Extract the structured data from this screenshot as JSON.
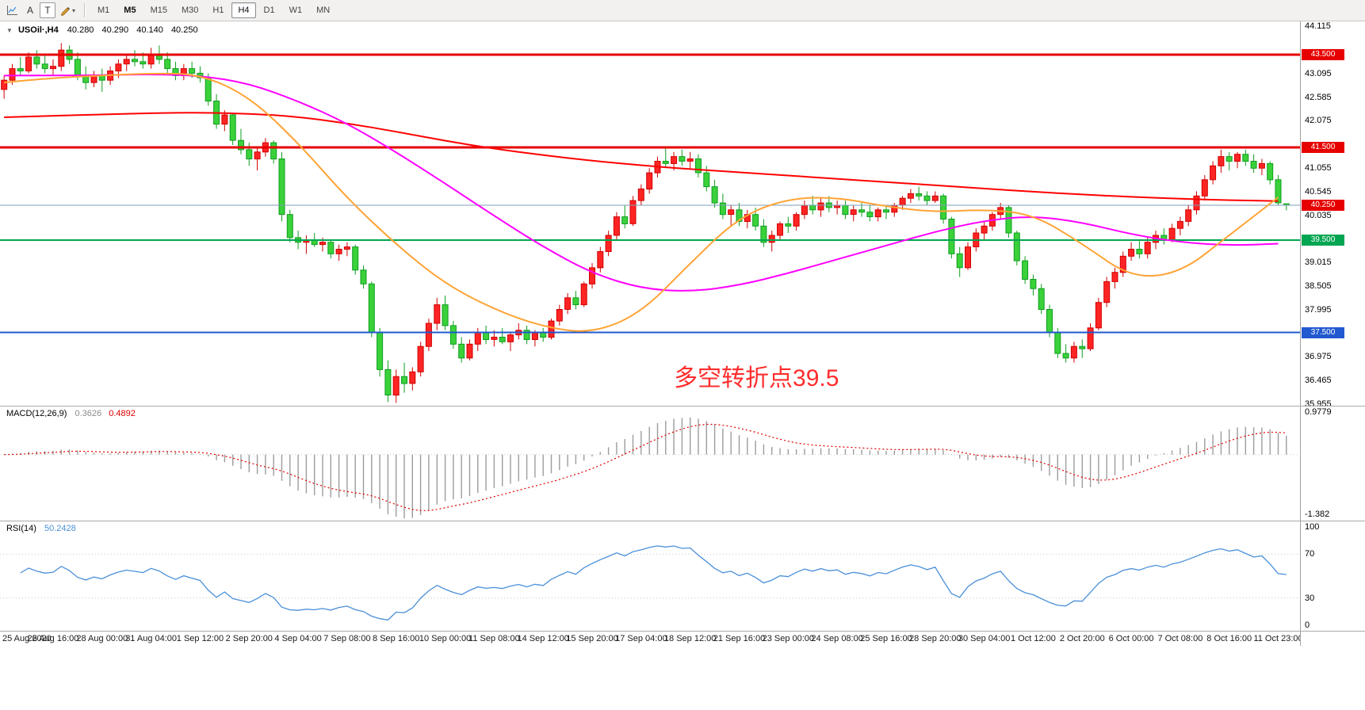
{
  "toolbar": {
    "a_label": "A",
    "t_label": "T",
    "icons": [
      "chart-icon",
      "pencil-icon",
      "caret-down-icon"
    ],
    "timeframes": [
      {
        "label": "M1"
      },
      {
        "label": "M5"
      },
      {
        "label": "M15"
      },
      {
        "label": "M30"
      },
      {
        "label": "H1"
      },
      {
        "label": "H4"
      },
      {
        "label": "D1"
      },
      {
        "label": "W1"
      },
      {
        "label": "MN"
      }
    ],
    "active_timeframe": "H4",
    "bold_timeframe": "M5"
  },
  "chart_header": {
    "collapse_glyph": "▼",
    "symbol": "USOil·,H4",
    "open": "40.280",
    "high": "40.290",
    "low": "40.140",
    "close": "40.250"
  },
  "annotation": {
    "text": "多空转折点39.5",
    "color": "#ff2d2d",
    "font_size": 30,
    "index": 82,
    "price": 36.62
  },
  "price_axis": {
    "ticks": [
      {
        "label": "44.115",
        "value": 44.115
      },
      {
        "label": "43.095",
        "value": 43.095
      },
      {
        "label": "42.585",
        "value": 42.585
      },
      {
        "label": "42.075",
        "value": 42.075
      },
      {
        "label": "41.055",
        "value": 41.055
      },
      {
        "label": "40.545",
        "value": 40.545
      },
      {
        "label": "40.035",
        "value": 40.035
      },
      {
        "label": "39.015",
        "value": 39.015
      },
      {
        "label": "38.505",
        "value": 38.505
      },
      {
        "label": "37.995",
        "value": 37.995
      },
      {
        "label": "36.975",
        "value": 36.975
      },
      {
        "label": "36.465",
        "value": 36.465
      },
      {
        "label": "35.955",
        "value": 35.955
      }
    ],
    "tags": [
      {
        "label": "43.500",
        "value": 43.5,
        "color": "#e60000"
      },
      {
        "label": "41.500",
        "value": 41.5,
        "color": "#e60000"
      },
      {
        "label": "40.250",
        "value": 40.25,
        "color": "#e60000"
      },
      {
        "label": "39.500",
        "value": 39.5,
        "color": "#00a651"
      },
      {
        "label": "37.500",
        "value": 37.5,
        "color": "#2159d0"
      }
    ]
  },
  "macd_panel": {
    "title": "MACD(12,26,9)",
    "main_value": "0.3626",
    "signal_value": "0.4892",
    "axis_max_label": "0.9779",
    "axis_min_label": "-1.382"
  },
  "rsi_panel": {
    "title": "RSI(14)",
    "value": "50.2428",
    "axis_labels": [
      {
        "label": "100",
        "value": 100
      },
      {
        "label": "70",
        "value": 70
      },
      {
        "label": "30",
        "value": 30
      },
      {
        "label": "0",
        "value": 0
      }
    ]
  },
  "time_axis": {
    "labels": [
      "25 Aug 2020",
      "26 Aug 16:00",
      "28 Aug 00:00",
      "31 Aug 04:00",
      "1 Sep 12:00",
      "2 Sep 20:00",
      "4 Sep 04:00",
      "7 Sep 08:00",
      "8 Sep 16:00",
      "10 Sep 00:00",
      "11 Sep 08:00",
      "14 Sep 12:00",
      "15 Sep 20:00",
      "17 Sep 04:00",
      "18 Sep 12:00",
      "21 Sep 16:00",
      "23 Sep 00:00",
      "24 Sep 08:00",
      "25 Sep 16:00",
      "28 Sep 20:00",
      "30 Sep 04:00",
      "1 Oct 12:00",
      "2 Oct 20:00",
      "6 Oct 00:00",
      "7 Oct 08:00",
      "8 Oct 16:00",
      "11 Oct 23:00"
    ]
  },
  "chart_data": {
    "type": "candlestick",
    "symbol": "USOil",
    "timeframe": "H4",
    "y_range": [
      35.92,
      44.22
    ],
    "labels_every": 6,
    "colors": {
      "bull": "#ff2424",
      "bull_border": "#cf0000",
      "bear": "#3ad13a",
      "bear_border": "#0f9e1f",
      "macd_hist": "#9c9c9c",
      "macd_signal": "#e00000",
      "rsi_line": "#4a90d9",
      "level_dotted": "#c8c8c8"
    },
    "hlines": [
      {
        "price": 43.5,
        "color": "#e60000",
        "width": 3
      },
      {
        "price": 41.5,
        "color": "#e60000",
        "width": 3
      },
      {
        "price": 39.5,
        "color": "#00a651",
        "width": 2
      },
      {
        "price": 37.5,
        "color": "#2159d0",
        "width": 2
      },
      {
        "price": 40.25,
        "color": "#7f9db9",
        "width": 1
      }
    ],
    "moving_averages": [
      {
        "name": "slow-ma",
        "color": "#ff0000",
        "width": 2,
        "values": [
          42.15,
          42.18,
          42.21,
          42.24,
          42.25,
          42.23,
          42.16,
          42.02,
          41.84,
          41.64,
          41.47,
          41.33,
          41.21,
          41.11,
          41.03,
          40.96,
          40.89,
          40.82,
          40.75,
          40.68,
          40.61,
          40.54,
          40.48,
          40.43,
          40.39,
          40.36,
          40.34
        ]
      },
      {
        "name": "medium-ma",
        "color": "#ff00ff",
        "width": 2,
        "values": [
          43.05,
          43.05,
          43.06,
          43.08,
          43.05,
          42.88,
          42.5,
          42.02,
          41.4,
          40.72,
          40.02,
          39.35,
          38.78,
          38.45,
          38.38,
          38.52,
          38.78,
          39.08,
          39.38,
          39.68,
          39.92,
          40.02,
          39.88,
          39.62,
          39.45,
          39.38,
          39.42
        ]
      },
      {
        "name": "fast-ma",
        "color": "#ffa335",
        "width": 2,
        "values": [
          42.9,
          43.0,
          43.05,
          43.1,
          43.08,
          42.6,
          41.6,
          40.4,
          39.4,
          38.55,
          38.0,
          37.62,
          37.48,
          37.92,
          39.0,
          40.0,
          40.4,
          40.42,
          40.22,
          40.1,
          40.16,
          40.06,
          39.42,
          38.68,
          38.78,
          39.6,
          40.42
        ]
      }
    ],
    "macd": {
      "fast": 12,
      "slow": 26,
      "signal": 9,
      "scale_max": 0.9779,
      "scale_min": -1.382
    },
    "rsi": {
      "period": 14,
      "scale": [
        0,
        100
      ],
      "levels": [
        30,
        70
      ]
    },
    "candles": [
      [
        42.75,
        43.05,
        42.55,
        42.95
      ],
      [
        42.95,
        43.3,
        42.85,
        43.2
      ],
      [
        43.2,
        43.45,
        43.05,
        43.15
      ],
      [
        43.15,
        43.55,
        43.1,
        43.45
      ],
      [
        43.45,
        43.6,
        43.2,
        43.3
      ],
      [
        43.3,
        43.5,
        43.1,
        43.2
      ],
      [
        43.2,
        43.4,
        43.05,
        43.25
      ],
      [
        43.25,
        43.75,
        43.15,
        43.6
      ],
      [
        43.6,
        43.7,
        43.3,
        43.4
      ],
      [
        43.4,
        43.55,
        42.95,
        43.05
      ],
      [
        43.05,
        43.25,
        42.75,
        42.9
      ],
      [
        42.9,
        43.15,
        42.8,
        43.05
      ],
      [
        43.05,
        43.2,
        42.7,
        42.95
      ],
      [
        42.95,
        43.25,
        42.85,
        43.15
      ],
      [
        43.15,
        43.4,
        43.0,
        43.3
      ],
      [
        43.3,
        43.5,
        43.15,
        43.4
      ],
      [
        43.4,
        43.6,
        43.25,
        43.35
      ],
      [
        43.35,
        43.55,
        43.2,
        43.3
      ],
      [
        43.3,
        43.65,
        43.2,
        43.5
      ],
      [
        43.5,
        43.7,
        43.3,
        43.4
      ],
      [
        43.4,
        43.55,
        43.1,
        43.2
      ],
      [
        43.2,
        43.35,
        42.95,
        43.05
      ],
      [
        43.05,
        43.3,
        42.95,
        43.2
      ],
      [
        43.2,
        43.35,
        43.0,
        43.1
      ],
      [
        43.1,
        43.25,
        42.9,
        43.0
      ],
      [
        43.0,
        43.1,
        42.4,
        42.5
      ],
      [
        42.5,
        42.65,
        41.9,
        42.0
      ],
      [
        42.0,
        42.3,
        41.85,
        42.2
      ],
      [
        42.2,
        42.25,
        41.55,
        41.65
      ],
      [
        41.65,
        41.9,
        41.35,
        41.45
      ],
      [
        41.45,
        41.6,
        41.1,
        41.25
      ],
      [
        41.25,
        41.5,
        41.0,
        41.4
      ],
      [
        41.4,
        41.7,
        41.3,
        41.6
      ],
      [
        41.6,
        41.65,
        41.15,
        41.25
      ],
      [
        41.25,
        41.4,
        39.9,
        40.05
      ],
      [
        40.05,
        40.15,
        39.45,
        39.55
      ],
      [
        39.55,
        39.7,
        39.3,
        39.45
      ],
      [
        39.45,
        39.6,
        39.2,
        39.5
      ],
      [
        39.5,
        39.65,
        39.35,
        39.4
      ],
      [
        39.4,
        39.55,
        39.25,
        39.45
      ],
      [
        39.45,
        39.5,
        39.1,
        39.2
      ],
      [
        39.2,
        39.4,
        39.05,
        39.3
      ],
      [
        39.3,
        39.45,
        39.15,
        39.35
      ],
      [
        39.35,
        39.4,
        38.75,
        38.85
      ],
      [
        38.85,
        38.95,
        38.45,
        38.55
      ],
      [
        38.55,
        38.6,
        37.4,
        37.5
      ],
      [
        37.5,
        37.6,
        36.55,
        36.7
      ],
      [
        36.7,
        36.9,
        36.0,
        36.15
      ],
      [
        36.15,
        36.7,
        35.98,
        36.55
      ],
      [
        36.55,
        36.85,
        36.2,
        36.4
      ],
      [
        36.4,
        36.75,
        36.25,
        36.65
      ],
      [
        36.65,
        37.3,
        36.55,
        37.2
      ],
      [
        37.2,
        37.8,
        37.1,
        37.7
      ],
      [
        37.7,
        38.25,
        37.55,
        38.1
      ],
      [
        38.1,
        38.3,
        37.55,
        37.65
      ],
      [
        37.65,
        37.75,
        37.15,
        37.25
      ],
      [
        37.25,
        37.4,
        36.85,
        36.95
      ],
      [
        36.95,
        37.35,
        36.9,
        37.25
      ],
      [
        37.25,
        37.6,
        37.1,
        37.5
      ],
      [
        37.5,
        37.65,
        37.25,
        37.35
      ],
      [
        37.35,
        37.55,
        37.2,
        37.4
      ],
      [
        37.4,
        37.6,
        37.25,
        37.3
      ],
      [
        37.3,
        37.5,
        37.1,
        37.45
      ],
      [
        37.45,
        37.7,
        37.35,
        37.55
      ],
      [
        37.55,
        37.65,
        37.25,
        37.35
      ],
      [
        37.35,
        37.55,
        37.2,
        37.5
      ],
      [
        37.5,
        37.6,
        37.3,
        37.4
      ],
      [
        37.4,
        37.8,
        37.35,
        37.75
      ],
      [
        37.75,
        38.1,
        37.65,
        38.0
      ],
      [
        38.0,
        38.35,
        37.9,
        38.25
      ],
      [
        38.25,
        38.4,
        38.0,
        38.1
      ],
      [
        38.1,
        38.6,
        38.05,
        38.55
      ],
      [
        38.55,
        39.0,
        38.45,
        38.9
      ],
      [
        38.9,
        39.35,
        38.8,
        39.25
      ],
      [
        39.25,
        39.7,
        39.15,
        39.6
      ],
      [
        39.6,
        40.1,
        39.5,
        40.0
      ],
      [
        40.0,
        40.25,
        39.75,
        39.85
      ],
      [
        39.85,
        40.45,
        39.8,
        40.35
      ],
      [
        40.35,
        40.7,
        40.25,
        40.6
      ],
      [
        40.6,
        41.05,
        40.5,
        40.95
      ],
      [
        40.95,
        41.3,
        40.85,
        41.2
      ],
      [
        41.2,
        41.5,
        41.05,
        41.15
      ],
      [
        41.15,
        41.4,
        41.0,
        41.3
      ],
      [
        41.3,
        41.45,
        41.1,
        41.2
      ],
      [
        41.2,
        41.4,
        41.05,
        41.25
      ],
      [
        41.25,
        41.35,
        40.85,
        40.95
      ],
      [
        40.95,
        41.1,
        40.55,
        40.65
      ],
      [
        40.65,
        40.8,
        40.2,
        40.3
      ],
      [
        40.3,
        40.5,
        39.95,
        40.05
      ],
      [
        40.05,
        40.25,
        39.8,
        40.15
      ],
      [
        40.15,
        40.3,
        39.8,
        39.9
      ],
      [
        39.9,
        40.15,
        39.75,
        40.05
      ],
      [
        40.05,
        40.2,
        39.7,
        39.8
      ],
      [
        39.8,
        39.95,
        39.35,
        39.45
      ],
      [
        39.45,
        39.7,
        39.25,
        39.6
      ],
      [
        39.6,
        39.9,
        39.5,
        39.85
      ],
      [
        39.85,
        40.0,
        39.65,
        39.8
      ],
      [
        39.8,
        40.1,
        39.7,
        40.05
      ],
      [
        40.05,
        40.35,
        39.95,
        40.25
      ],
      [
        40.25,
        40.45,
        40.05,
        40.15
      ],
      [
        40.15,
        40.4,
        40.0,
        40.3
      ],
      [
        40.3,
        40.45,
        40.1,
        40.2
      ],
      [
        40.2,
        40.35,
        40.05,
        40.25
      ],
      [
        40.25,
        40.35,
        39.95,
        40.05
      ],
      [
        40.05,
        40.25,
        39.9,
        40.15
      ],
      [
        40.15,
        40.3,
        40.0,
        40.1
      ],
      [
        40.1,
        40.25,
        39.9,
        40.0
      ],
      [
        40.0,
        40.2,
        39.9,
        40.15
      ],
      [
        40.15,
        40.25,
        39.95,
        40.1
      ],
      [
        40.1,
        40.3,
        40.0,
        40.25
      ],
      [
        40.25,
        40.45,
        40.15,
        40.4
      ],
      [
        40.4,
        40.6,
        40.3,
        40.5
      ],
      [
        40.5,
        40.65,
        40.35,
        40.45
      ],
      [
        40.45,
        40.55,
        40.25,
        40.35
      ],
      [
        40.35,
        40.55,
        40.3,
        40.45
      ],
      [
        40.45,
        40.5,
        39.85,
        39.95
      ],
      [
        39.95,
        40.0,
        39.1,
        39.2
      ],
      [
        39.2,
        39.35,
        38.7,
        38.9
      ],
      [
        38.9,
        39.45,
        38.85,
        39.35
      ],
      [
        39.35,
        39.75,
        39.25,
        39.65
      ],
      [
        39.65,
        39.9,
        39.5,
        39.8
      ],
      [
        39.8,
        40.1,
        39.7,
        40.05
      ],
      [
        40.05,
        40.3,
        39.95,
        40.2
      ],
      [
        40.2,
        40.25,
        39.55,
        39.65
      ],
      [
        39.65,
        39.7,
        38.95,
        39.05
      ],
      [
        39.05,
        39.15,
        38.55,
        38.65
      ],
      [
        38.65,
        38.75,
        38.3,
        38.45
      ],
      [
        38.45,
        38.55,
        37.9,
        38.0
      ],
      [
        38.0,
        38.1,
        37.4,
        37.5
      ],
      [
        37.5,
        37.6,
        36.95,
        37.05
      ],
      [
        37.05,
        37.25,
        36.85,
        36.95
      ],
      [
        36.95,
        37.3,
        36.85,
        37.2
      ],
      [
        37.2,
        37.35,
        36.95,
        37.15
      ],
      [
        37.15,
        37.7,
        37.1,
        37.6
      ],
      [
        37.6,
        38.25,
        37.55,
        38.15
      ],
      [
        38.15,
        38.7,
        38.05,
        38.6
      ],
      [
        38.6,
        38.9,
        38.45,
        38.8
      ],
      [
        38.8,
        39.25,
        38.7,
        39.15
      ],
      [
        39.15,
        39.45,
        39.05,
        39.3
      ],
      [
        39.3,
        39.5,
        39.1,
        39.2
      ],
      [
        39.2,
        39.55,
        39.1,
        39.45
      ],
      [
        39.45,
        39.7,
        39.3,
        39.6
      ],
      [
        39.6,
        39.75,
        39.4,
        39.5
      ],
      [
        39.5,
        39.85,
        39.45,
        39.75
      ],
      [
        39.75,
        40.0,
        39.6,
        39.9
      ],
      [
        39.9,
        40.25,
        39.8,
        40.15
      ],
      [
        40.15,
        40.55,
        40.05,
        40.45
      ],
      [
        40.45,
        40.9,
        40.35,
        40.8
      ],
      [
        40.8,
        41.2,
        40.7,
        41.1
      ],
      [
        41.1,
        41.45,
        40.95,
        41.3
      ],
      [
        41.3,
        41.4,
        41.0,
        41.2
      ],
      [
        41.2,
        41.4,
        41.05,
        41.35
      ],
      [
        41.35,
        41.45,
        41.1,
        41.2
      ],
      [
        41.2,
        41.35,
        40.95,
        41.05
      ],
      [
        41.05,
        41.25,
        40.9,
        41.15
      ],
      [
        41.15,
        41.2,
        40.7,
        40.8
      ],
      [
        40.8,
        40.9,
        40.25,
        40.3
      ],
      [
        40.28,
        40.29,
        40.14,
        40.25
      ]
    ]
  }
}
